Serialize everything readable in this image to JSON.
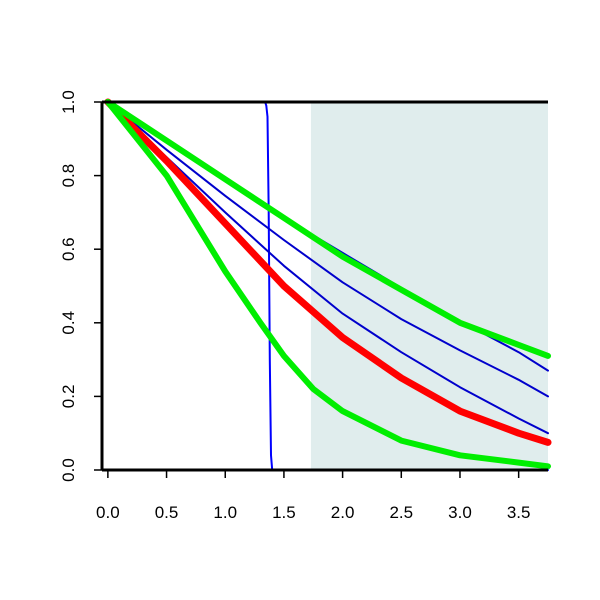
{
  "chart_data": {
    "type": "line",
    "title": "",
    "xlabel": "",
    "ylabel": "",
    "xlim": [
      -0.05,
      3.75
    ],
    "ylim": [
      0,
      1
    ],
    "grid": false,
    "x_ticks": [
      "0.0",
      "0.5",
      "1.0",
      "1.5",
      "2.0",
      "2.5",
      "3.0",
      "3.5"
    ],
    "y_ticks": [
      "0.0",
      "0.2",
      "0.4",
      "0.6",
      "0.8",
      "1.0"
    ],
    "shaded_region": {
      "x_start": 1.73,
      "x_end": 3.75,
      "color": "#e0eded"
    },
    "series": [
      {
        "color": "#0000ff",
        "width": 2,
        "x": [
          0,
          1.0,
          1.34,
          1.35,
          1.36,
          1.37,
          1.38,
          1.39,
          1.4,
          3.75
        ],
        "y": [
          1.0,
          1.0,
          1.0,
          0.99,
          0.96,
          0.7,
          0.3,
          0.04,
          0.0,
          0.0
        ]
      },
      {
        "color": "#0000cc",
        "width": 2,
        "x": [
          0,
          0.5,
          1.0,
          1.5,
          2.0,
          2.5,
          3.0,
          3.5,
          3.75
        ],
        "y": [
          1.0,
          0.85,
          0.7,
          0.555,
          0.425,
          0.32,
          0.225,
          0.14,
          0.1
        ]
      },
      {
        "color": "#0000cc",
        "width": 2,
        "x": [
          0,
          0.5,
          1.0,
          1.5,
          2.0,
          2.5,
          3.0,
          3.5,
          3.75
        ],
        "y": [
          1.0,
          0.89,
          0.785,
          0.685,
          0.59,
          0.495,
          0.405,
          0.32,
          0.27
        ]
      },
      {
        "color": "#0000cc",
        "width": 2,
        "x": [
          0,
          0.5,
          1.0,
          1.5,
          2.0,
          2.5,
          3.0,
          3.5,
          3.75
        ],
        "y": [
          1.0,
          0.87,
          0.745,
          0.625,
          0.51,
          0.41,
          0.325,
          0.245,
          0.2
        ]
      },
      {
        "color": "#ff0000",
        "width": 7,
        "x": [
          0,
          0.5,
          1.0,
          1.5,
          2.0,
          2.5,
          3.0,
          3.5,
          3.75
        ],
        "y": [
          1.0,
          0.84,
          0.67,
          0.5,
          0.36,
          0.25,
          0.16,
          0.1,
          0.075
        ]
      },
      {
        "color": "#00ee00",
        "width": 6,
        "x": [
          0,
          0.5,
          1.0,
          1.5,
          2.0,
          2.5,
          3.0,
          3.5,
          3.75
        ],
        "y": [
          1.0,
          0.895,
          0.79,
          0.685,
          0.58,
          0.49,
          0.4,
          0.34,
          0.31
        ]
      },
      {
        "color": "#00ee00",
        "width": 6,
        "x": [
          0,
          0.5,
          1.0,
          1.3,
          1.5,
          1.75,
          2.0,
          2.5,
          3.0,
          3.5,
          3.75
        ],
        "y": [
          1.0,
          0.8,
          0.54,
          0.4,
          0.31,
          0.22,
          0.16,
          0.08,
          0.04,
          0.02,
          0.01
        ]
      }
    ]
  }
}
